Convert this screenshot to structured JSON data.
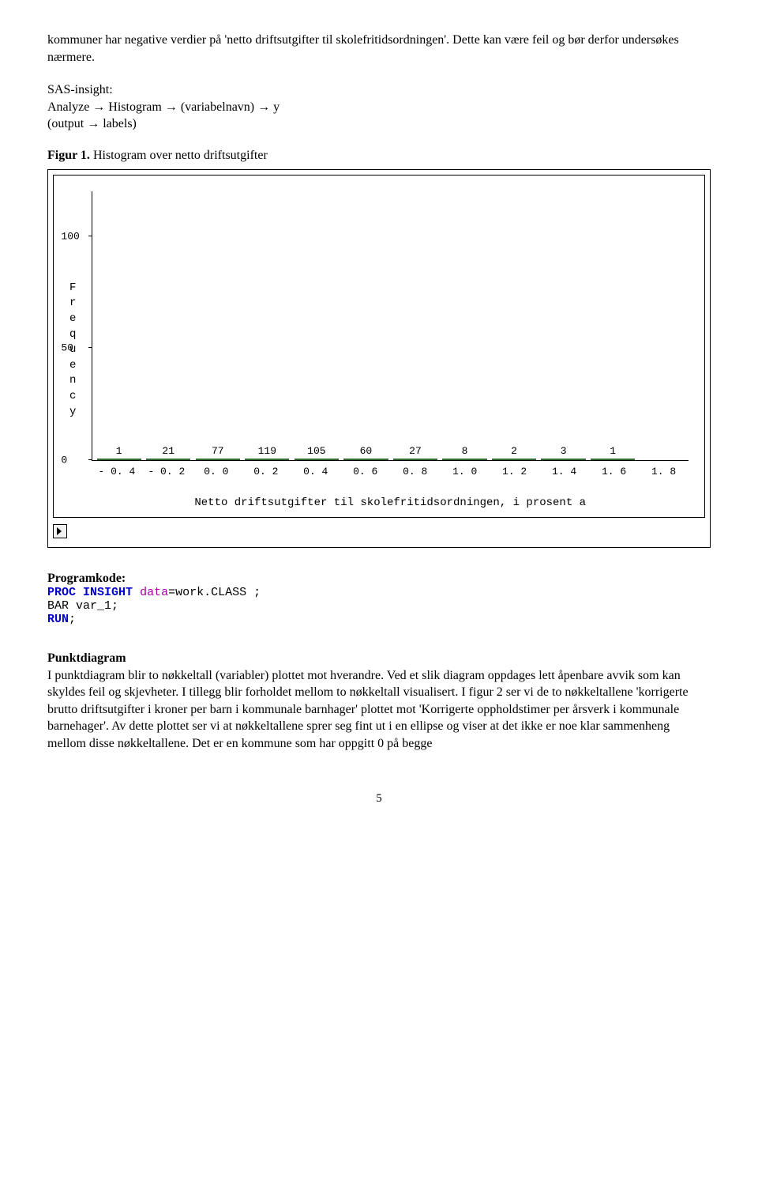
{
  "intro": "kommuner har negative verdier på 'netto driftsutgifter til skolefritidsordningen'. Dette kan være feil og bør derfor undersøkes nærmere.",
  "sas_line1": "SAS-insight:",
  "sas_line2": "Analyze → Histogram → (variabelnavn) → y",
  "sas_line3": "(output → labels)",
  "figure_caption_bold": "Figur 1.",
  "figure_caption_rest": " Histogram over netto driftsutgifter",
  "chart": {
    "ylabel": "Frequency",
    "yticks": [
      {
        "label": "100",
        "pos": 83.3
      },
      {
        "label": "50",
        "pos": 41.7
      },
      {
        "label": "0",
        "pos": 0
      }
    ],
    "ymax": 120,
    "bars": [
      {
        "x": "-0.4",
        "v": 1
      },
      {
        "x": "-0.2",
        "v": 21
      },
      {
        "x": "0.0",
        "v": 77
      },
      {
        "x": "0.2",
        "v": 119
      },
      {
        "x": "0.4",
        "v": 105
      },
      {
        "x": "0.6",
        "v": 60
      },
      {
        "x": "0.8",
        "v": 27
      },
      {
        "x": "1.0",
        "v": 8
      },
      {
        "x": "1.2",
        "v": 2
      },
      {
        "x": "1.4",
        "v": 3
      },
      {
        "x": "1.6",
        "v": 1
      }
    ],
    "extra_x": "1.8",
    "xlabel": "Netto driftsutgifter til skolefritidsordningen, i prosent a",
    "bar_border": "#346b34",
    "bar_fill": "#e8f2e8"
  },
  "programkode_label": "Programkode:",
  "code": {
    "proc": "PROC",
    "insight": "INSIGHT",
    "data_eq": "data",
    "work_class": "=work.CLASS ;",
    "bar": "BAR var_1;",
    "run": "RUN",
    "semicolon": ";"
  },
  "punkt_head": "Punktdiagram",
  "punkt_body": "I punktdiagram blir to nøkkeltall (variabler) plottet mot hverandre. Ved et slik diagram oppdages lett åpenbare avvik som kan skyldes feil og skjevheter. I tillegg blir forholdet mellom to nøkkeltall visualisert. I figur 2 ser vi de to nøkkeltallene 'korrigerte brutto driftsutgifter i kroner per barn i kommunale barnhager' plottet mot 'Korrigerte oppholdstimer per årsverk i kommunale barnehager'. Av dette plottet ser vi at nøkkeltallene sprer seg fint ut i en ellipse og viser at  det ikke er noe klar sammenheng mellom disse nøkkeltallene. Det er en kommune som har oppgitt 0 på begge",
  "page_number": "5"
}
